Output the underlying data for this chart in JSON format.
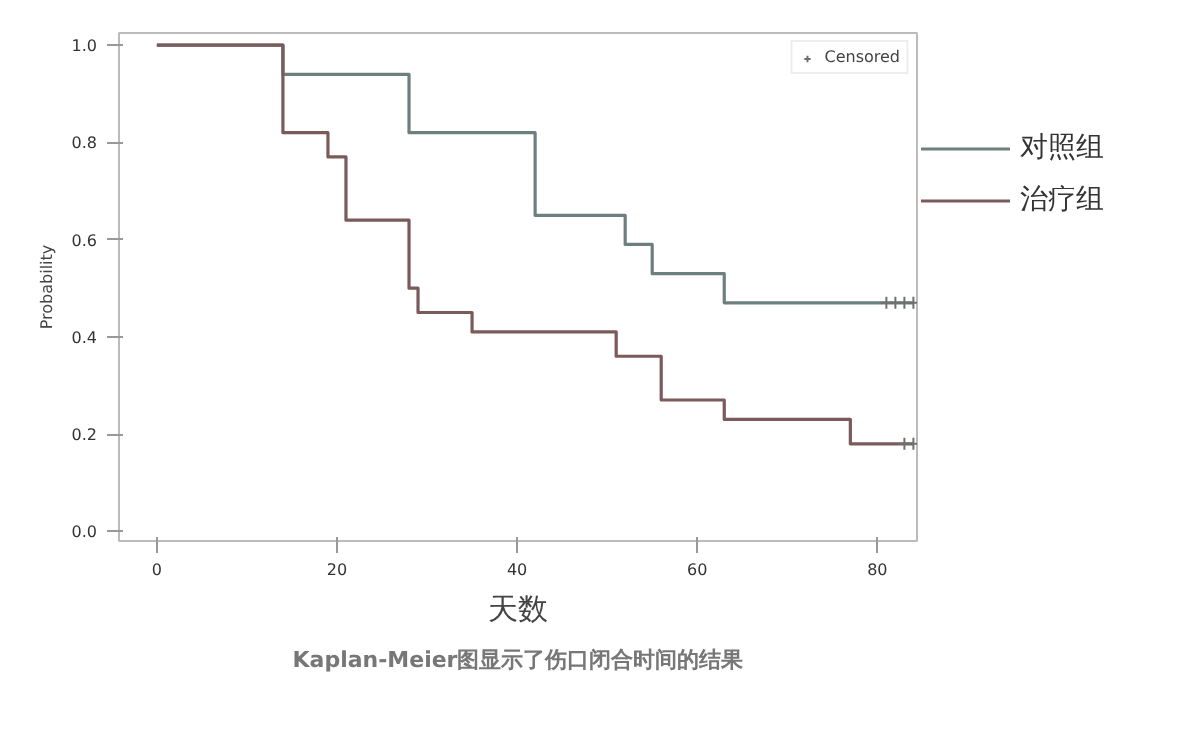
{
  "chart_data": {
    "type": "step",
    "xlabel": "天数",
    "ylabel": "Probability",
    "annotations": [
      "Kaplan-Meier图显示了伤口闭合时间的结果"
    ],
    "xlim": [
      -4.2,
      84.4
    ],
    "ylim": [
      -0.02,
      1.025
    ],
    "xticks": [
      0,
      20,
      40,
      60,
      80
    ],
    "yticks": [
      {
        "value": 0,
        "label": "0.0"
      },
      {
        "value": 0.2,
        "label": "0.2"
      },
      {
        "value": 0.4,
        "label": "0.4"
      },
      {
        "value": 0.6,
        "label": "0.6"
      },
      {
        "value": 0.8,
        "label": "0.8"
      },
      {
        "value": 1,
        "label": "1.0"
      }
    ],
    "grid": false,
    "legend": "right",
    "series": [
      {
        "name": "对照组",
        "color": "#6e7f7f",
        "x": [
          0,
          14,
          28,
          42,
          52,
          55,
          63,
          84
        ],
        "values": [
          1,
          0.94,
          0.82,
          0.65,
          0.59,
          0.53,
          0.47,
          0.47
        ]
      },
      {
        "name": "治疗组",
        "color": "#7a5a5a",
        "x": [
          0,
          14,
          19,
          21,
          28,
          29,
          35,
          51,
          56,
          63,
          77,
          84
        ],
        "values": [
          1,
          0.82,
          0.77,
          0.64,
          0.5,
          0.45,
          0.41,
          0.36,
          0.27,
          0.23,
          0.18,
          0.18
        ]
      },
      {
        "name": "Censored",
        "type": "scatter",
        "marker": "cross",
        "color": "#707070",
        "x": [
          81,
          82,
          83,
          84,
          83,
          84
        ],
        "values": [
          0.47,
          0.47,
          0.47,
          0.47,
          0.18,
          0.18
        ]
      }
    ]
  }
}
